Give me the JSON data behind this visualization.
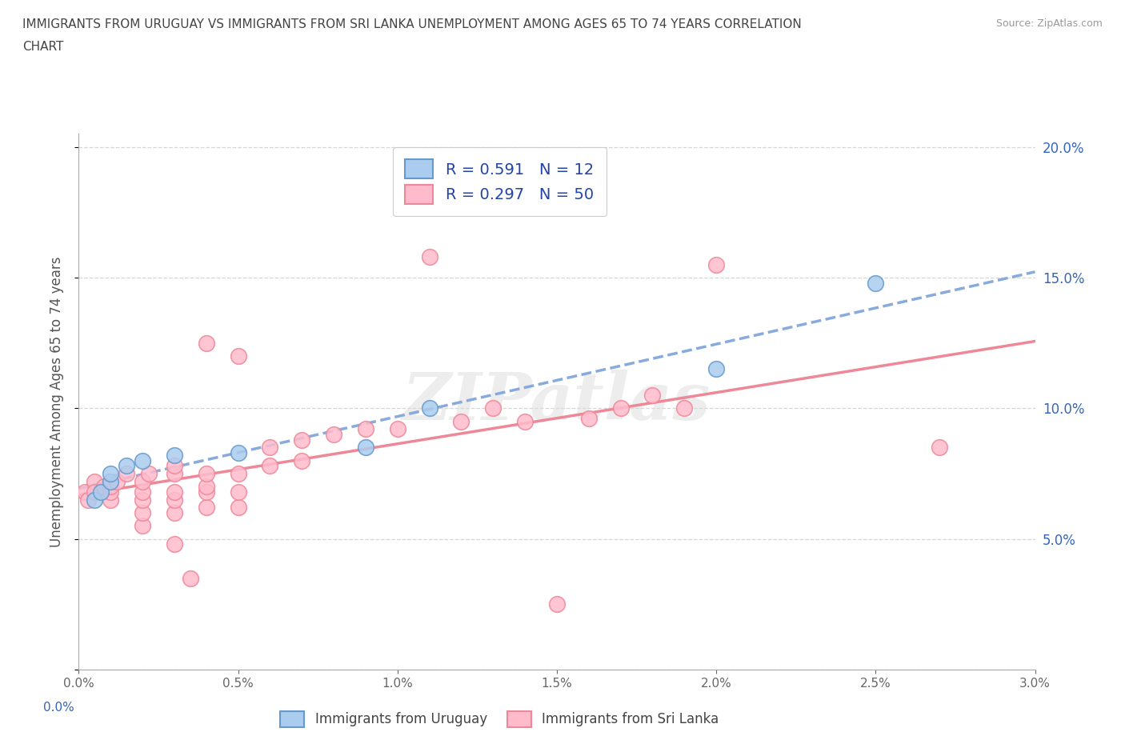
{
  "title_line1": "IMMIGRANTS FROM URUGUAY VS IMMIGRANTS FROM SRI LANKA UNEMPLOYMENT AMONG AGES 65 TO 74 YEARS CORRELATION",
  "title_line2": "CHART",
  "source_text": "Source: ZipAtlas.com",
  "ylabel": "Unemployment Among Ages 65 to 74 years",
  "xmin": 0.0,
  "xmax": 0.03,
  "ymin": 0.0,
  "ymax": 0.205,
  "uruguay_color": "#aaccee",
  "srilanka_color": "#ffbbcc",
  "uruguay_edge_color": "#6699cc",
  "srilanka_edge_color": "#ee8899",
  "uruguay_line_color": "#88aadd",
  "srilanka_line_color": "#ee8899",
  "right_axis_color": "#3366bb",
  "legend_text_color": "#2244aa",
  "legend_label_uruguay": "R = 0.591   N = 12",
  "legend_label_srilanka": "R = 0.297   N = 50",
  "legend_bottom_label_uruguay": "Immigrants from Uruguay",
  "legend_bottom_label_srilanka": "Immigrants from Sri Lanka",
  "uruguay_x": [
    0.0005,
    0.0007,
    0.001,
    0.001,
    0.0015,
    0.002,
    0.003,
    0.005,
    0.009,
    0.011,
    0.02,
    0.025
  ],
  "uruguay_y": [
    0.065,
    0.068,
    0.072,
    0.075,
    0.078,
    0.08,
    0.082,
    0.083,
    0.085,
    0.1,
    0.115,
    0.148
  ],
  "srilanka_x": [
    0.0002,
    0.0003,
    0.0005,
    0.0005,
    0.0008,
    0.001,
    0.001,
    0.001,
    0.0012,
    0.0015,
    0.002,
    0.002,
    0.002,
    0.002,
    0.002,
    0.0022,
    0.003,
    0.003,
    0.003,
    0.003,
    0.003,
    0.003,
    0.0035,
    0.004,
    0.004,
    0.004,
    0.004,
    0.004,
    0.005,
    0.005,
    0.005,
    0.005,
    0.006,
    0.006,
    0.007,
    0.007,
    0.008,
    0.009,
    0.01,
    0.011,
    0.012,
    0.013,
    0.014,
    0.015,
    0.016,
    0.017,
    0.018,
    0.019,
    0.02,
    0.027
  ],
  "srilanka_y": [
    0.068,
    0.065,
    0.072,
    0.068,
    0.07,
    0.065,
    0.068,
    0.07,
    0.072,
    0.075,
    0.055,
    0.06,
    0.065,
    0.068,
    0.072,
    0.075,
    0.048,
    0.06,
    0.065,
    0.068,
    0.075,
    0.078,
    0.035,
    0.062,
    0.068,
    0.07,
    0.075,
    0.125,
    0.062,
    0.068,
    0.075,
    0.12,
    0.078,
    0.085,
    0.08,
    0.088,
    0.09,
    0.092,
    0.092,
    0.158,
    0.095,
    0.1,
    0.095,
    0.025,
    0.096,
    0.1,
    0.105,
    0.1,
    0.155,
    0.085
  ],
  "watermark_text": "ZIPatlas",
  "background_color": "#ffffff",
  "grid_color": "#cccccc",
  "title_color": "#444444",
  "tick_color": "#666666"
}
